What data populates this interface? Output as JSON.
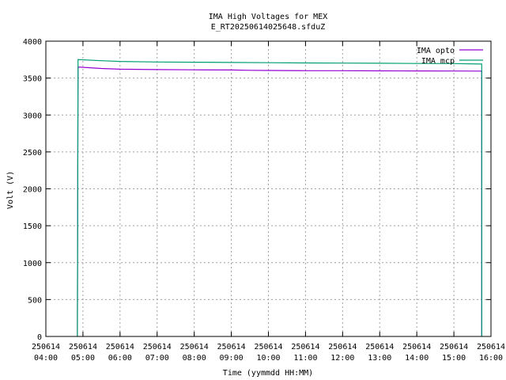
{
  "chart_data": {
    "type": "line",
    "title": "IMA High Voltages for MEX",
    "subtitle": "E_RT20250614025648.sfduZ",
    "xlabel": "Time (yymmdd HH:MM)",
    "ylabel": "Volt (V)",
    "xlim": [
      "250614 04:00",
      "250614 16:00"
    ],
    "ylim": [
      0,
      4000
    ],
    "grid": true,
    "legend_position": "top-right",
    "x_ticks": [
      {
        "date": "250614",
        "time": "04:00"
      },
      {
        "date": "250614",
        "time": "05:00"
      },
      {
        "date": "250614",
        "time": "06:00"
      },
      {
        "date": "250614",
        "time": "07:00"
      },
      {
        "date": "250614",
        "time": "08:00"
      },
      {
        "date": "250614",
        "time": "09:00"
      },
      {
        "date": "250614",
        "time": "10:00"
      },
      {
        "date": "250614",
        "time": "11:00"
      },
      {
        "date": "250614",
        "time": "12:00"
      },
      {
        "date": "250614",
        "time": "13:00"
      },
      {
        "date": "250614",
        "time": "14:00"
      },
      {
        "date": "250614",
        "time": "15:00"
      },
      {
        "date": "250614",
        "time": "16:00"
      }
    ],
    "y_ticks": [
      "0",
      "500",
      "1000",
      "1500",
      "2000",
      "2500",
      "3000",
      "3500",
      "4000"
    ],
    "series": [
      {
        "name": "IMA opto",
        "color": "#9400d3",
        "points": [
          [
            "250614 04:51",
            0
          ],
          [
            "250614 04:51",
            150
          ],
          [
            "250614 04:52",
            3650
          ],
          [
            "250614 05:30",
            3630
          ],
          [
            "250614 06:00",
            3620
          ],
          [
            "250614 07:00",
            3615
          ],
          [
            "250614 08:00",
            3612
          ],
          [
            "250614 09:00",
            3610
          ],
          [
            "250614 09:30",
            3605
          ],
          [
            "250614 10:00",
            3603
          ],
          [
            "250614 11:00",
            3600
          ],
          [
            "250614 12:00",
            3600
          ],
          [
            "250614 13:00",
            3598
          ],
          [
            "250614 14:00",
            3597
          ],
          [
            "250614 15:00",
            3596
          ],
          [
            "250614 15:45",
            3595
          ],
          [
            "250614 15:45",
            0
          ]
        ]
      },
      {
        "name": "IMA mcp",
        "color": "#009e73",
        "points": [
          [
            "250614 04:51",
            0
          ],
          [
            "250614 04:52",
            3750
          ],
          [
            "250614 05:30",
            3735
          ],
          [
            "250614 06:00",
            3725
          ],
          [
            "250614 07:00",
            3718
          ],
          [
            "250614 08:00",
            3715
          ],
          [
            "250614 09:00",
            3712
          ],
          [
            "250614 10:00",
            3708
          ],
          [
            "250614 11:00",
            3705
          ],
          [
            "250614 12:00",
            3703
          ],
          [
            "250614 13:00",
            3701
          ],
          [
            "250614 14:00",
            3698
          ],
          [
            "250614 15:00",
            3697
          ],
          [
            "250614 15:45",
            3690
          ],
          [
            "250614 15:45",
            0
          ]
        ]
      }
    ]
  }
}
